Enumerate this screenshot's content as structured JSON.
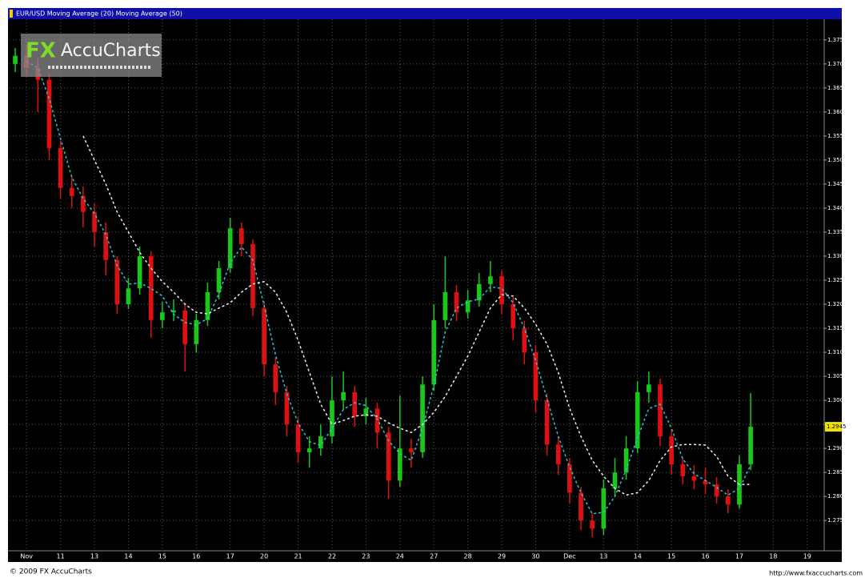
{
  "chart_data": {
    "type": "candlestick",
    "title": "EUR/USD  Moving Average (20)  Moving Average (50)",
    "watermark": {
      "brand": "FX",
      "name": "AccuCharts"
    },
    "copyright": "© 2009 FX AccuCharts",
    "url": "http://www.fxaccucharts.com",
    "categories": [
      null,
      "Nov",
      null,
      null,
      "11",
      null,
      null,
      "13",
      null,
      null,
      "14",
      null,
      null,
      "15",
      null,
      null,
      "16",
      null,
      null,
      "17",
      null,
      null,
      "20",
      null,
      null,
      "21",
      null,
      null,
      "22",
      null,
      null,
      "23",
      null,
      null,
      "24",
      null,
      null,
      "27",
      null,
      null,
      "28",
      null,
      null,
      "29",
      null,
      null,
      "30",
      null,
      null,
      "Dec",
      null,
      null,
      "13",
      null,
      null,
      "14",
      null,
      null,
      "15",
      null,
      null,
      "16",
      null,
      null,
      "17",
      null,
      null,
      "18",
      null,
      null,
      "19",
      null
    ],
    "ylim": [
      1.2687,
      1.3783
    ],
    "yticks": [
      {
        "value": 1.275,
        "label": "1.2750"
      },
      {
        "value": 1.28,
        "label": "1.2800"
      },
      {
        "value": 1.285,
        "label": "1.2850"
      },
      {
        "value": 1.29,
        "label": "1.2900"
      },
      {
        "value": 1.295,
        "label": "1.2950"
      },
      {
        "value": 1.3,
        "label": "1.3000"
      },
      {
        "value": 1.305,
        "label": "1.3050"
      },
      {
        "value": 1.31,
        "label": "1.3100"
      },
      {
        "value": 1.315,
        "label": "1.3150"
      },
      {
        "value": 1.32,
        "label": "1.3200"
      },
      {
        "value": 1.325,
        "label": "1.3250"
      },
      {
        "value": 1.33,
        "label": "1.3300"
      },
      {
        "value": 1.335,
        "label": "1.3350"
      },
      {
        "value": 1.34,
        "label": "1.3400"
      },
      {
        "value": 1.345,
        "label": "1.3450"
      },
      {
        "value": 1.35,
        "label": "1.3500"
      },
      {
        "value": 1.355,
        "label": "1.3550"
      },
      {
        "value": 1.36,
        "label": "1.3600"
      },
      {
        "value": 1.365,
        "label": "1.3650"
      },
      {
        "value": 1.37,
        "label": "1.3700"
      },
      {
        "value": 1.375,
        "label": "1.3750"
      }
    ],
    "grid": true,
    "series": [
      {
        "kind": "candles",
        "up_color": "#19c819",
        "down_color": "#e01010",
        "open": [
          1.37,
          1.3717,
          1.3692,
          1.3667,
          1.3525,
          1.3442,
          1.3425,
          1.3392,
          1.335,
          1.3292,
          1.32,
          1.3233,
          1.33,
          1.3167,
          1.3183,
          1.3187,
          1.3117,
          1.3167,
          1.3225,
          1.3275,
          1.3358,
          1.3325,
          1.3192,
          1.3075,
          1.3017,
          1.295,
          1.2892,
          1.29,
          1.2925,
          1.3,
          1.3017,
          1.2967,
          1.2983,
          1.2933,
          1.2833,
          1.29,
          1.2892,
          1.3033,
          1.3167,
          1.3225,
          1.3183,
          1.3208,
          1.3242,
          1.3258,
          1.32,
          1.315,
          1.31,
          1.3,
          1.2908,
          1.2867,
          1.2808,
          1.275,
          1.2733,
          1.2817,
          1.285,
          1.29,
          1.3017,
          1.3033,
          1.2925,
          1.2867,
          1.2842,
          1.2833,
          1.2825,
          1.28,
          1.2783,
          1.2867,
          null,
          null,
          null,
          null,
          null,
          null
        ],
        "high": [
          1.3733,
          1.374,
          1.3712,
          1.368,
          1.354,
          1.3467,
          1.3445,
          1.341,
          1.337,
          1.33,
          1.3255,
          1.332,
          1.331,
          1.3205,
          1.321,
          1.32,
          1.318,
          1.3245,
          1.329,
          1.338,
          1.337,
          1.3335,
          1.3205,
          1.309,
          1.303,
          1.2965,
          1.2925,
          1.295,
          1.305,
          1.306,
          1.303,
          1.3005,
          1.2995,
          1.2945,
          1.301,
          1.292,
          1.305,
          1.32,
          1.33,
          1.324,
          1.323,
          1.3265,
          1.329,
          1.327,
          1.3215,
          1.3165,
          1.3115,
          1.3015,
          1.2925,
          1.288,
          1.282,
          1.2765,
          1.2835,
          1.288,
          1.2925,
          1.304,
          1.306,
          1.3045,
          1.294,
          1.288,
          1.2865,
          1.286,
          1.284,
          1.2815,
          1.2885,
          1.3015,
          null,
          null,
          null,
          null,
          null,
          null
        ],
        "low": [
          1.3683,
          1.3675,
          1.36,
          1.35,
          1.342,
          1.34,
          1.336,
          1.332,
          1.326,
          1.318,
          1.319,
          1.322,
          1.313,
          1.315,
          1.3165,
          1.306,
          1.31,
          1.3155,
          1.321,
          1.3265,
          1.33,
          1.3175,
          1.305,
          1.299,
          1.2925,
          1.287,
          1.286,
          1.2885,
          1.291,
          1.298,
          1.2945,
          1.295,
          1.29,
          1.2795,
          1.282,
          1.286,
          1.288,
          1.302,
          1.315,
          1.3165,
          1.317,
          1.3195,
          1.3225,
          1.318,
          1.3125,
          1.3075,
          1.2975,
          1.2885,
          1.2845,
          1.2785,
          1.273,
          1.2715,
          1.272,
          1.28,
          1.2835,
          1.289,
          1.2995,
          1.2905,
          1.2845,
          1.2825,
          1.2815,
          1.2805,
          1.2785,
          1.2765,
          1.2775,
          1.2855,
          null,
          null,
          null,
          null,
          null,
          null
        ],
        "close": [
          1.3717,
          1.3692,
          1.3667,
          1.3525,
          1.3442,
          1.3425,
          1.3392,
          1.335,
          1.3292,
          1.32,
          1.3233,
          1.33,
          1.3167,
          1.3183,
          1.3187,
          1.3117,
          1.3167,
          1.3225,
          1.3275,
          1.3358,
          1.3325,
          1.3192,
          1.3075,
          1.3017,
          1.295,
          1.2892,
          1.29,
          1.2925,
          1.3,
          1.3017,
          1.2967,
          1.2983,
          1.2933,
          1.2833,
          1.29,
          1.2892,
          1.3033,
          1.3167,
          1.3225,
          1.3183,
          1.3208,
          1.3242,
          1.3258,
          1.32,
          1.315,
          1.31,
          1.3,
          1.2908,
          1.2867,
          1.2808,
          1.275,
          1.2733,
          1.2817,
          1.285,
          1.29,
          1.3017,
          1.3033,
          1.2925,
          1.2867,
          1.2842,
          1.2833,
          1.2825,
          1.28,
          1.2783,
          1.2867,
          1.2945,
          null,
          null,
          null,
          null,
          null,
          null
        ]
      },
      {
        "kind": "line",
        "color": "#1ec8dc",
        "dashed": true,
        "values": [
          null,
          1.3705,
          1.3692,
          1.3628,
          1.3545,
          1.3464,
          1.342,
          1.3389,
          1.3345,
          1.3281,
          1.3242,
          1.3244,
          1.3233,
          1.3217,
          1.3179,
          1.3162,
          1.3157,
          1.317,
          1.3222,
          1.3286,
          1.3319,
          1.3292,
          1.3197,
          1.3095,
          1.3014,
          1.2953,
          1.2914,
          1.2906,
          1.2942,
          1.2981,
          1.2995,
          1.2989,
          1.2961,
          1.2916,
          1.2889,
          1.2875,
          1.2942,
          1.3031,
          1.3142,
          1.3192,
          1.3205,
          1.3211,
          1.3236,
          1.3233,
          1.3203,
          1.315,
          1.3083,
          1.3003,
          1.2925,
          1.2861,
          1.2808,
          1.2764,
          1.2767,
          1.28,
          1.2856,
          1.2922,
          1.2983,
          1.2992,
          1.2942,
          1.2878,
          1.2847,
          1.2833,
          1.2819,
          1.2803,
          1.2817,
          1.2865,
          null,
          null,
          null,
          null,
          null,
          null
        ]
      },
      {
        "kind": "line",
        "color": "#f0f0f0",
        "dashed": true,
        "values": [
          null,
          null,
          null,
          null,
          null,
          null,
          1.355,
          1.35,
          1.345,
          1.3392,
          1.335,
          1.3308,
          1.3275,
          1.3247,
          1.3225,
          1.32,
          1.3183,
          1.318,
          1.3192,
          1.3203,
          1.3225,
          1.3242,
          1.3247,
          1.3225,
          1.3183,
          1.3125,
          1.3058,
          1.2992,
          1.295,
          1.2958,
          1.2967,
          1.297,
          1.2967,
          1.2953,
          1.2942,
          1.2933,
          1.295,
          1.2975,
          1.3008,
          1.305,
          1.3092,
          1.3142,
          1.3192,
          1.322,
          1.3217,
          1.3192,
          1.3158,
          1.3117,
          1.3058,
          1.2983,
          1.2925,
          1.2875,
          1.2842,
          1.2817,
          1.2803,
          1.2808,
          1.2833,
          1.2875,
          1.2903,
          1.2908,
          1.2908,
          1.2907,
          1.2883,
          1.2842,
          1.2825,
          1.2825,
          null,
          null,
          null,
          null,
          null,
          null
        ]
      }
    ]
  }
}
